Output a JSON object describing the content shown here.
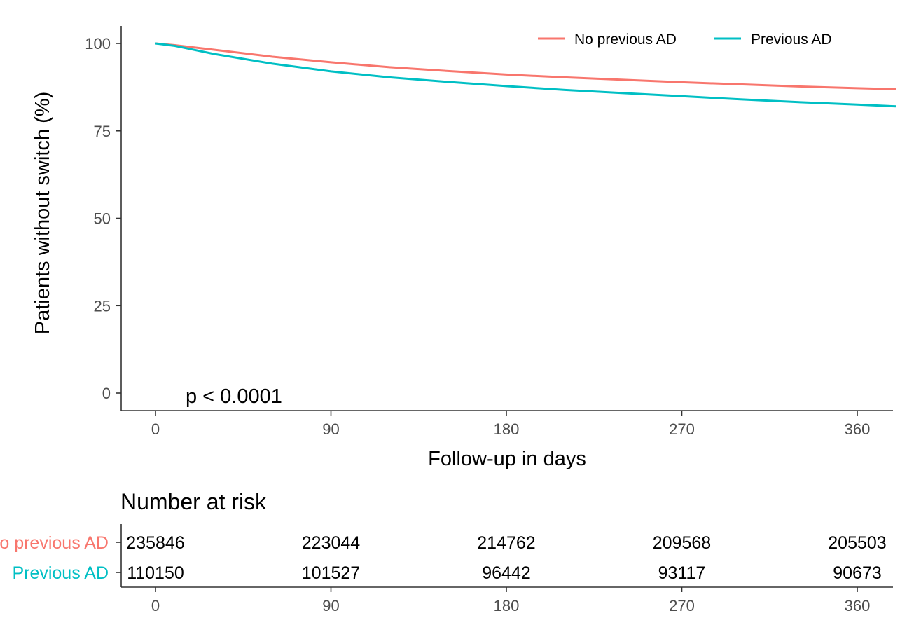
{
  "colors": {
    "no_previous": "#F8766D",
    "previous": "#00BFC4"
  },
  "chart_data": {
    "type": "line",
    "subtype": "kaplan-meier",
    "xlabel": "Follow-up in days",
    "ylabel": "Patients without switch (%)",
    "xlim": [
      0,
      380
    ],
    "ylim": [
      0,
      100
    ],
    "x_ticks": [
      "0",
      "90",
      "180",
      "270",
      "360"
    ],
    "y_ticks": [
      "0",
      "25",
      "50",
      "75",
      "100"
    ],
    "grid": false,
    "legend_position": "top-right",
    "annotation": "p < 0.0001",
    "series": [
      {
        "name": "No previous AD",
        "x": [
          0,
          10,
          30,
          60,
          90,
          120,
          150,
          180,
          210,
          240,
          270,
          300,
          330,
          360,
          380
        ],
        "y": [
          100,
          99.5,
          98.2,
          96.2,
          94.6,
          93.2,
          92.1,
          91.1,
          90.3,
          89.6,
          88.9,
          88.3,
          87.7,
          87.2,
          86.9
        ]
      },
      {
        "name": "Previous AD",
        "x": [
          0,
          10,
          30,
          60,
          90,
          120,
          150,
          180,
          210,
          240,
          270,
          300,
          330,
          360,
          380
        ],
        "y": [
          100,
          99.3,
          97.0,
          94.2,
          92.0,
          90.3,
          89.0,
          87.8,
          86.7,
          85.8,
          84.9,
          84.0,
          83.2,
          82.5,
          82.0
        ]
      }
    ]
  },
  "risk_table": {
    "title": "Number at risk",
    "x_ticks": [
      "0",
      "90",
      "180",
      "270",
      "360"
    ],
    "rows": [
      {
        "label": "No previous AD",
        "values": [
          "235846",
          "223044",
          "214762",
          "209568",
          "205503"
        ]
      },
      {
        "label": "Previous AD",
        "values": [
          "110150",
          "101527",
          "96442",
          "93117",
          "90673"
        ]
      }
    ]
  }
}
